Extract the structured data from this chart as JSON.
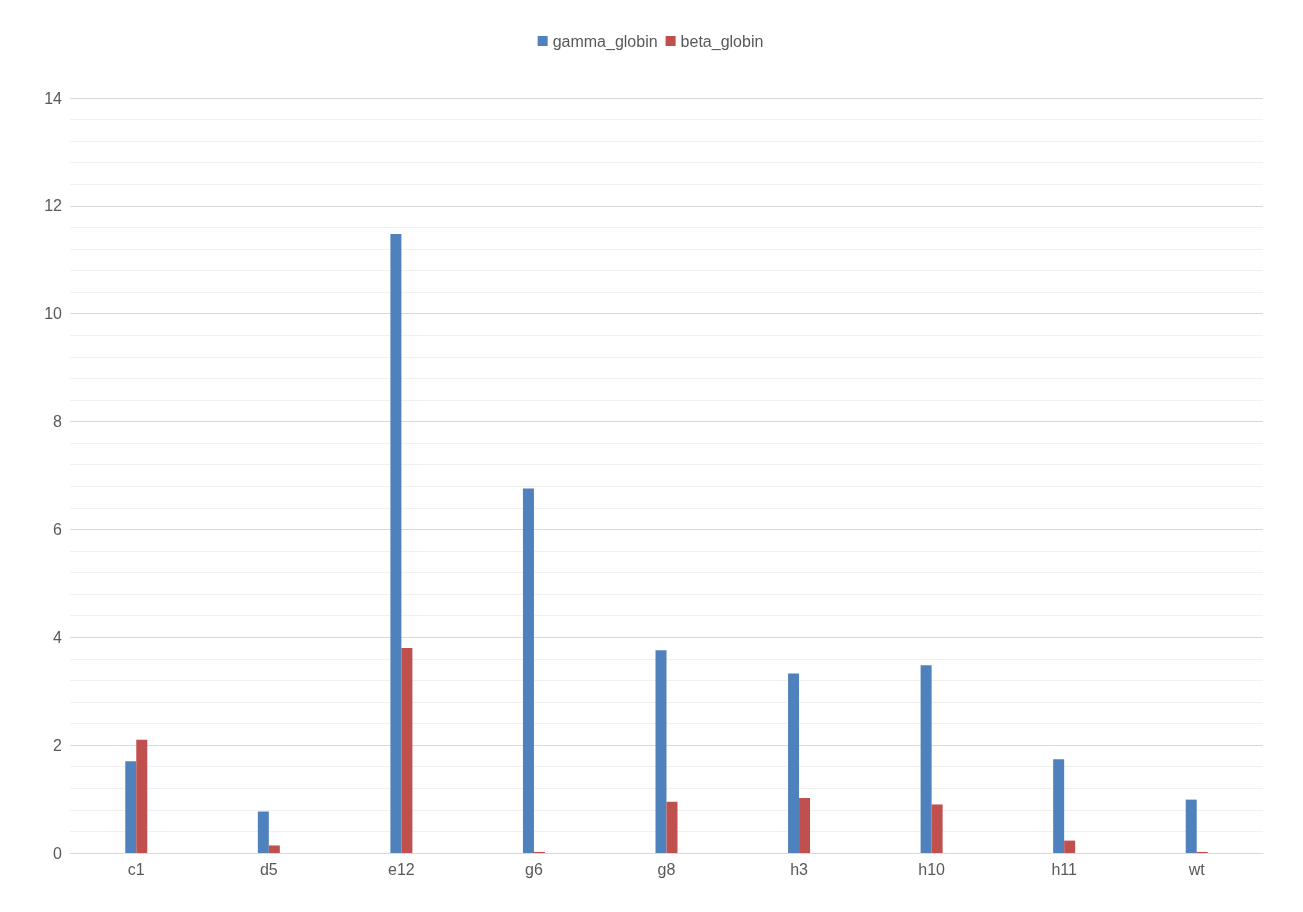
{
  "chart_data": {
    "type": "bar",
    "categories": [
      "c1",
      "d5",
      "e12",
      "g6",
      "g8",
      "h3",
      "h10",
      "h11",
      "wt"
    ],
    "series": [
      {
        "name": "gamma_globin",
        "color": "#4f81bd",
        "values": [
          1.7,
          0.77,
          11.48,
          6.76,
          3.76,
          3.33,
          3.48,
          1.74,
          0.99
        ]
      },
      {
        "name": "beta_globin",
        "color": "#c0504d",
        "values": [
          2.1,
          0.14,
          3.8,
          0.02,
          0.95,
          1.02,
          0.9,
          0.23,
          0.02
        ]
      }
    ],
    "ylim": [
      0,
      14
    ],
    "yticks": [
      0,
      2,
      4,
      6,
      8,
      10,
      12,
      14
    ],
    "grid": "y",
    "legend": "top"
  }
}
